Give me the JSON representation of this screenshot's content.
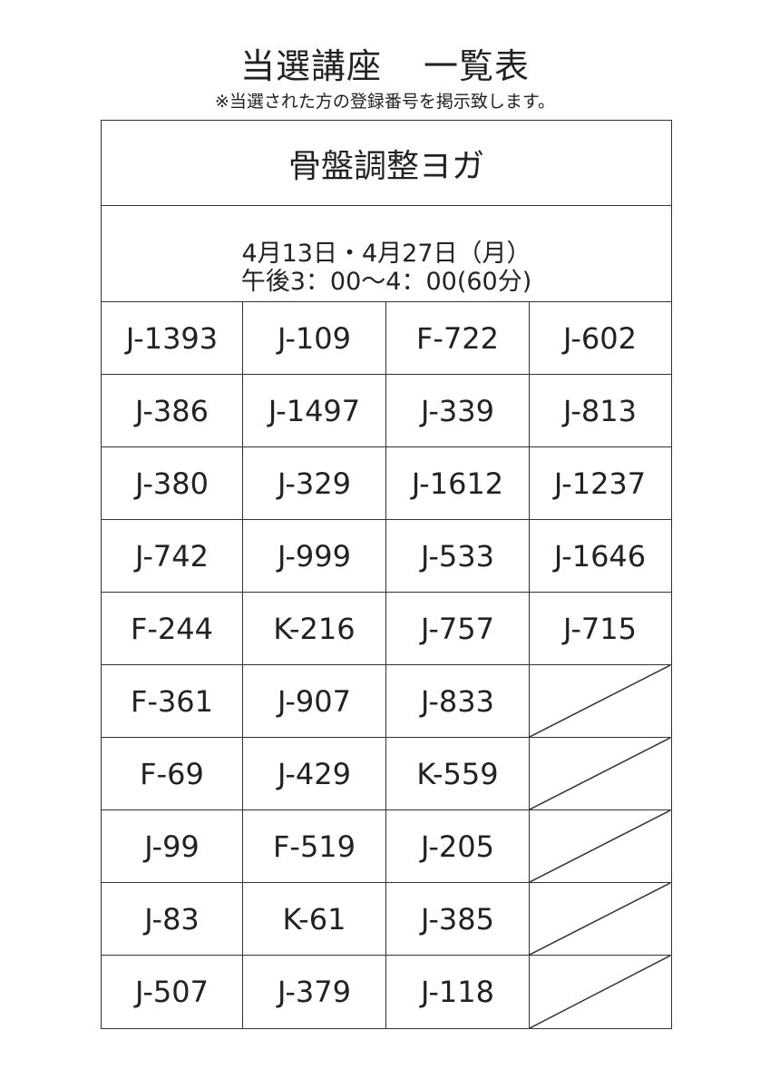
{
  "header": {
    "title_part1": "当選講座",
    "title_part2": "一覧表",
    "subtitle": "※当選された方の登録番号を掲示致します。"
  },
  "course": {
    "name": "骨盤調整ヨガ",
    "dates": "4月13日・4月27日（月）",
    "time": "午後3：00～4：00(60分)"
  },
  "winners": [
    [
      "J-1393",
      "J-109",
      "F-722",
      "J-602"
    ],
    [
      "J-386",
      "J-1497",
      "J-339",
      "J-813"
    ],
    [
      "J-380",
      "J-329",
      "J-1612",
      "J-1237"
    ],
    [
      "J-742",
      "J-999",
      "J-533",
      "J-1646"
    ],
    [
      "F-244",
      "K-216",
      "J-757",
      "J-715"
    ],
    [
      "F-361",
      "J-907",
      "J-833",
      ""
    ],
    [
      "F-69",
      "J-429",
      "K-559",
      ""
    ],
    [
      "J-99",
      "F-519",
      "J-205",
      ""
    ],
    [
      "J-83",
      "K-61",
      "J-385",
      ""
    ],
    [
      "J-507",
      "J-379",
      "J-118",
      ""
    ]
  ]
}
